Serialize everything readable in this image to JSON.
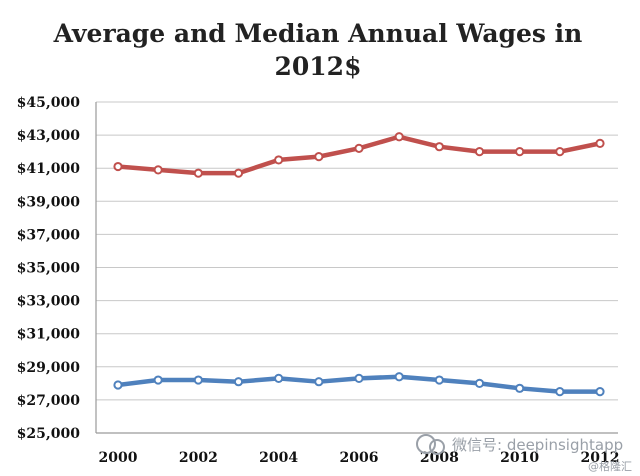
{
  "chart_data": {
    "type": "line",
    "title_lines": [
      "Average and Median Annual Wages in",
      "2012$"
    ],
    "xlabel": "",
    "ylabel": "",
    "x": [
      2000,
      2001,
      2002,
      2003,
      2004,
      2005,
      2006,
      2007,
      2008,
      2009,
      2010,
      2011,
      2012
    ],
    "x_tick_labels": [
      "2000",
      "2002",
      "2004",
      "2006",
      "2008",
      "2010",
      "2012"
    ],
    "x_tick_values": [
      2000,
      2002,
      2004,
      2006,
      2008,
      2010,
      2012
    ],
    "y_tick_labels": [
      "$45,000",
      "$43,000",
      "$41,000",
      "$39,000",
      "$37,000",
      "$35,000",
      "$33,000",
      "$31,000",
      "$29,000",
      "$27,000",
      "$25,000"
    ],
    "y_tick_values": [
      45000,
      43000,
      41000,
      39000,
      37000,
      35000,
      33000,
      31000,
      29000,
      27000,
      25000
    ],
    "xlim": [
      2000,
      2012
    ],
    "ylim": [
      25000,
      45000
    ],
    "grid": true,
    "legend": "none",
    "series": [
      {
        "color": "#c0504d",
        "values": [
          41100,
          40900,
          40700,
          40700,
          41500,
          41700,
          42200,
          42900,
          42300,
          42000,
          42000,
          42000,
          42500
        ]
      },
      {
        "color": "#4f81bd",
        "values": [
          27900,
          28200,
          28200,
          28100,
          28300,
          28100,
          28300,
          28400,
          28200,
          28000,
          27700,
          27500,
          27500
        ]
      }
    ]
  },
  "watermark": {
    "text": "微信号: deepinsightapp",
    "corner_text": "@格隆汇"
  }
}
